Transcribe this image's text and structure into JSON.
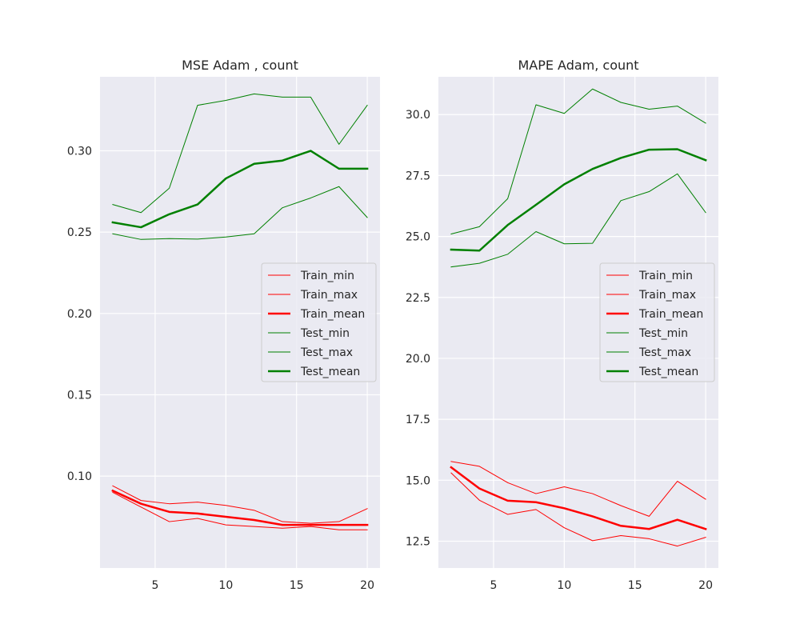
{
  "colors": {
    "background": "#eaeaf2",
    "grid": "#ffffff",
    "train": "#ff0000",
    "test": "#008000"
  },
  "legend_location": "center-right",
  "chart_data": [
    {
      "type": "line",
      "title": "MSE Adam , count",
      "xlabel": "",
      "ylabel": "",
      "xlim": [
        1.1,
        20.9
      ],
      "ylim": [
        0.0435,
        0.3455
      ],
      "xticks": [
        5,
        10,
        15,
        20
      ],
      "yticks": [
        0.1,
        0.15,
        0.2,
        0.25,
        0.3
      ],
      "ytick_labels": [
        "0.10",
        "0.15",
        "0.20",
        "0.25",
        "0.30"
      ],
      "grid": true,
      "legend": "center-right",
      "x": [
        2,
        4,
        6,
        8,
        10,
        12,
        14,
        16,
        18,
        20
      ],
      "series": [
        {
          "name": "Train_min",
          "color": "#ff0000",
          "width": 1,
          "values": [
            0.09,
            0.081,
            0.072,
            0.074,
            0.07,
            0.069,
            0.068,
            0.069,
            0.067,
            0.067
          ]
        },
        {
          "name": "Train_max",
          "color": "#ff0000",
          "width": 1,
          "values": [
            0.094,
            0.085,
            0.083,
            0.084,
            0.082,
            0.079,
            0.072,
            0.071,
            0.072,
            0.08
          ]
        },
        {
          "name": "Train_mean",
          "color": "#ff0000",
          "width": 2.5,
          "values": [
            0.091,
            0.083,
            0.078,
            0.077,
            0.075,
            0.073,
            0.07,
            0.07,
            0.07,
            0.07
          ]
        },
        {
          "name": "Test_min",
          "color": "#008000",
          "width": 1,
          "values": [
            0.249,
            0.2455,
            0.246,
            0.2457,
            0.247,
            0.249,
            0.265,
            0.271,
            0.278,
            0.259
          ]
        },
        {
          "name": "Test_max",
          "color": "#008000",
          "width": 1,
          "values": [
            0.267,
            0.262,
            0.277,
            0.328,
            0.331,
            0.335,
            0.333,
            0.333,
            0.304,
            0.328
          ]
        },
        {
          "name": "Test_mean",
          "color": "#008000",
          "width": 2.5,
          "values": [
            0.256,
            0.253,
            0.261,
            0.267,
            0.283,
            0.292,
            0.294,
            0.3,
            0.289,
            0.289
          ]
        }
      ]
    },
    {
      "type": "line",
      "title": "MAPE Adam, count",
      "xlabel": "",
      "ylabel": "",
      "xlim": [
        1.1,
        20.9
      ],
      "ylim": [
        11.4,
        31.55
      ],
      "xticks": [
        5,
        10,
        15,
        20
      ],
      "yticks": [
        12.5,
        15.0,
        17.5,
        20.0,
        22.5,
        25.0,
        27.5,
        30.0
      ],
      "ytick_labels": [
        "12.5",
        "15.0",
        "17.5",
        "20.0",
        "22.5",
        "25.0",
        "27.5",
        "30.0"
      ],
      "grid": true,
      "legend": "center-right",
      "x": [
        2,
        4,
        6,
        8,
        10,
        12,
        14,
        16,
        18,
        20
      ],
      "series": [
        {
          "name": "Train_min",
          "color": "#ff0000",
          "width": 1,
          "values": [
            15.3,
            14.18,
            13.6,
            13.8,
            13.05,
            12.52,
            12.73,
            12.6,
            12.3,
            12.66
          ]
        },
        {
          "name": "Train_max",
          "color": "#ff0000",
          "width": 1,
          "values": [
            15.77,
            15.57,
            14.9,
            14.45,
            14.73,
            14.45,
            13.96,
            13.52,
            14.96,
            14.22
          ]
        },
        {
          "name": "Train_mean",
          "color": "#ff0000",
          "width": 2.5,
          "values": [
            15.53,
            14.66,
            14.16,
            14.1,
            13.85,
            13.52,
            13.13,
            13.0,
            13.38,
            13.0
          ]
        },
        {
          "name": "Test_min",
          "color": "#008000",
          "width": 1,
          "values": [
            23.75,
            23.9,
            24.27,
            25.2,
            24.7,
            24.72,
            26.47,
            26.84,
            27.57,
            25.98
          ]
        },
        {
          "name": "Test_max",
          "color": "#008000",
          "width": 1,
          "values": [
            25.1,
            25.4,
            26.55,
            30.4,
            30.05,
            31.05,
            30.5,
            30.22,
            30.35,
            29.65
          ]
        },
        {
          "name": "Test_mean",
          "color": "#008000",
          "width": 2.5,
          "values": [
            24.46,
            24.42,
            25.47,
            26.3,
            27.14,
            27.77,
            28.22,
            28.56,
            28.58,
            28.13
          ]
        }
      ]
    }
  ]
}
